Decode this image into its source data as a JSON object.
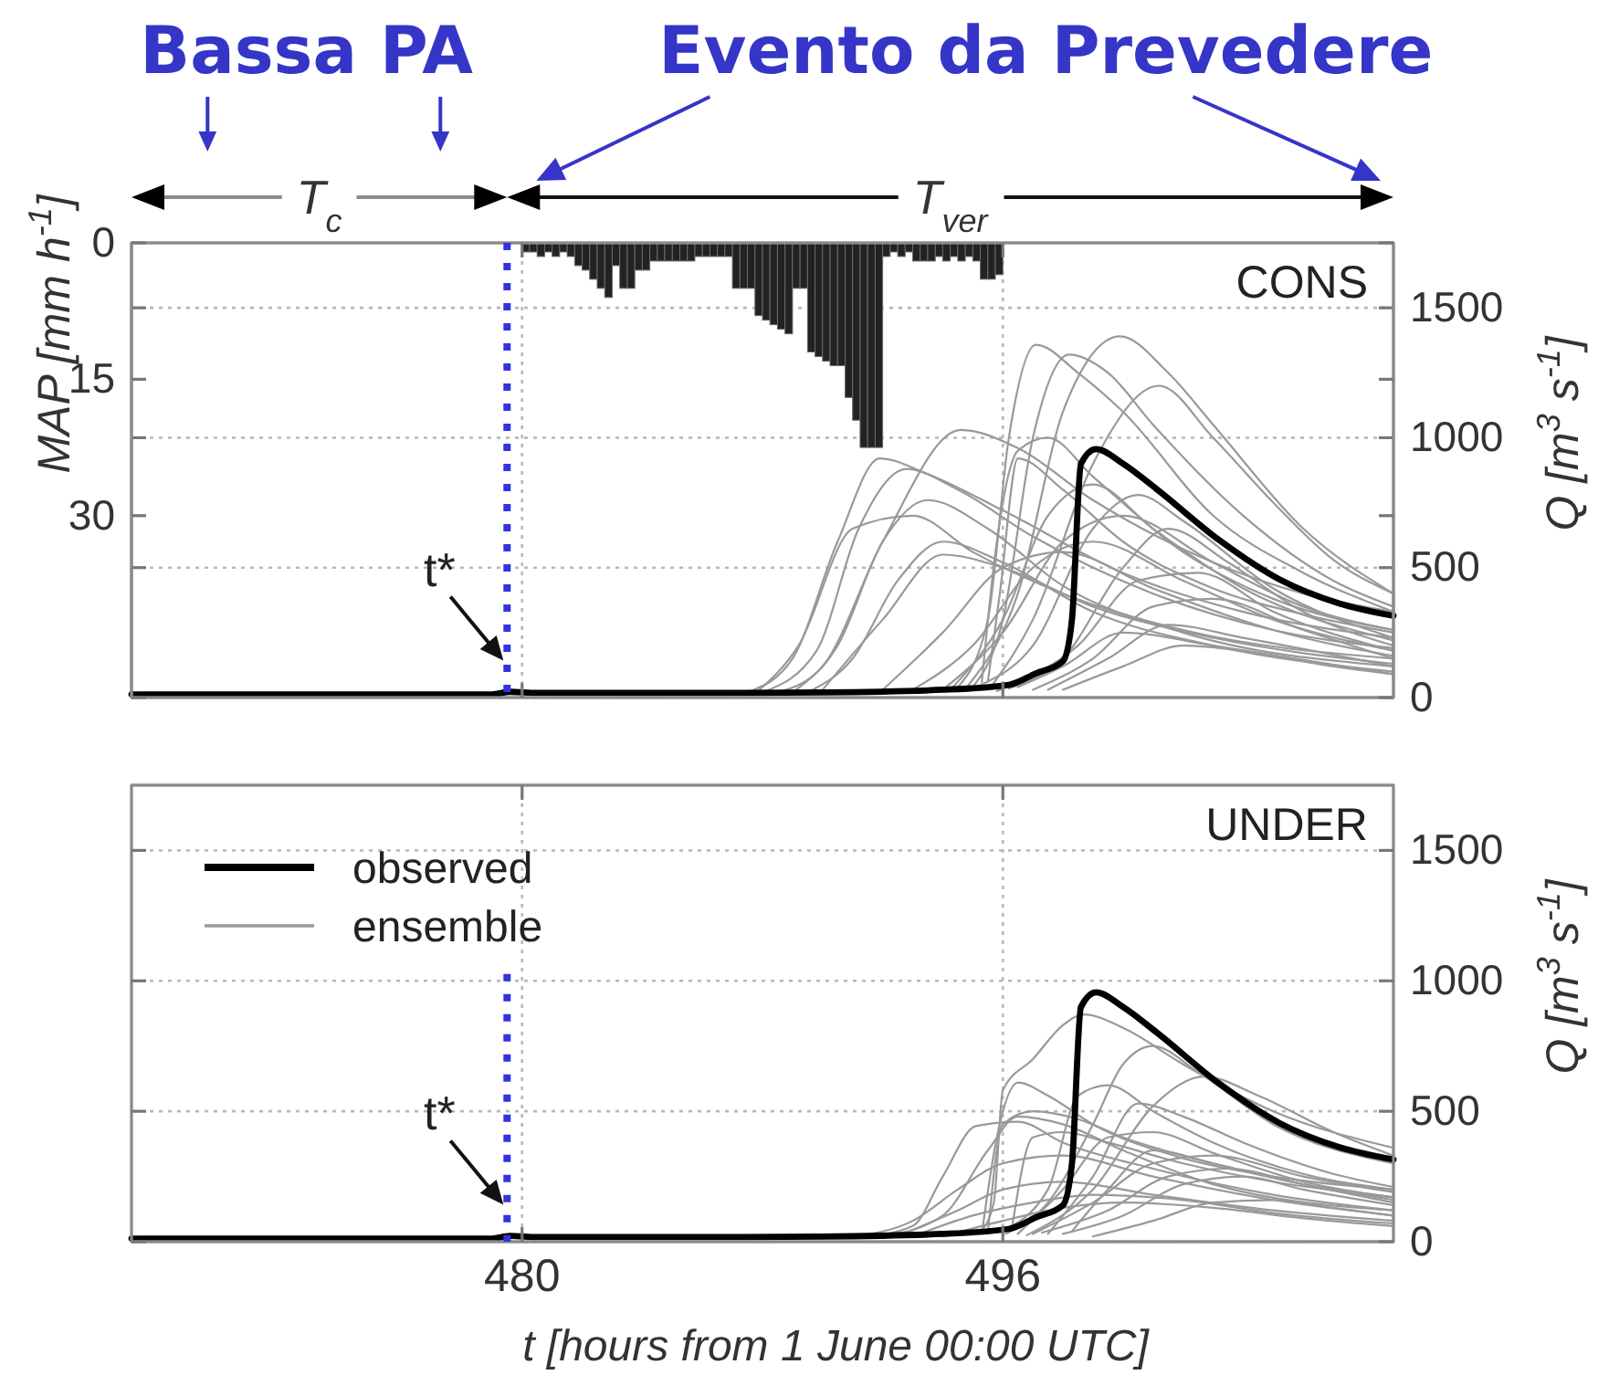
{
  "chart_data": [
    {
      "type": "line",
      "title": "CONS",
      "ylabel": "Q [m$^{3}$ s$^{-1}$]",
      "y2label": "MAP [mm h$^{-1}$]",
      "xlim": [
        467,
        509
      ],
      "ylim": [
        0,
        1750
      ],
      "yticks": [
        0,
        500,
        1000,
        1500
      ],
      "y2lim": [
        50,
        0
      ],
      "y2ticks": [
        0,
        15,
        30
      ],
      "grid": true,
      "tick_labels": "y",
      "ref_lines": [
        {
          "axis": "x",
          "value": 479.5,
          "color": "#3333dd",
          "line_style": "dotted"
        }
      ],
      "annotations": [
        "Bassa PA",
        "Evento da Prevedere",
        "T$_{c}$",
        "T$_{ver}$",
        {
          "text": "t*",
          "x": 479.5,
          "y": 100
        }
      ],
      "series": [
        {
          "type": "bar",
          "axis": "y2",
          "color": "#222222",
          "x": [
            480.125,
            480.375,
            480.625,
            480.875,
            481.125,
            481.375,
            481.625,
            481.875,
            482.125,
            482.375,
            482.625,
            482.875,
            483.125,
            483.375,
            483.625,
            483.875,
            484.125,
            484.375,
            484.625,
            484.875,
            485.125,
            485.375,
            485.625,
            485.875,
            486.125,
            486.375,
            486.625,
            486.875,
            487.125,
            487.375,
            487.625,
            487.875,
            488.125,
            488.375,
            488.625,
            488.875,
            489.125,
            489.375,
            489.625,
            489.875,
            490.125,
            490.375,
            490.625,
            490.875,
            491.125,
            491.375,
            491.625,
            491.875,
            492.125,
            492.375,
            492.625,
            492.875,
            493.125,
            493.375,
            493.625,
            493.875,
            494.125,
            494.375,
            494.625,
            494.875,
            495.125,
            495.375,
            495.625,
            495.875
          ],
          "values": [
            1.0,
            1.0,
            1.5,
            1.0,
            1.5,
            1.0,
            1.5,
            2.5,
            3.0,
            4.0,
            5.0,
            6.0,
            2.5,
            5.0,
            5.0,
            3.0,
            3.0,
            2.0,
            2.0,
            2.0,
            2.0,
            2.0,
            2.0,
            1.5,
            1.5,
            1.5,
            1.5,
            1.5,
            5.0,
            5.0,
            5.0,
            8.0,
            8.5,
            9.0,
            9.5,
            10.0,
            5.0,
            5.0,
            12.0,
            12.5,
            13.0,
            13.5,
            13.5,
            17.0,
            19.5,
            22.5,
            22.5,
            22.5,
            1.5,
            1.0,
            1.5,
            1.0,
            2.0,
            2.0,
            2.0,
            1.5,
            2.0,
            1.5,
            2.0,
            1.5,
            2.0,
            4.0,
            4.0,
            3.5
          ]
        },
        {
          "color": "#999999",
          "x": [
            487.5,
            489,
            490.5,
            491.9,
            493.5,
            496,
            500,
            504,
            509
          ],
          "values": [
            20,
            150,
            600,
            920,
            860,
            720,
            480,
            330,
            230
          ]
        },
        {
          "color": "#999999",
          "x": [
            488,
            489.8,
            491.2,
            492.8,
            494.5,
            497,
            501,
            505,
            509
          ],
          "values": [
            20,
            180,
            650,
            880,
            800,
            620,
            400,
            260,
            190
          ]
        },
        {
          "color": "#999999",
          "x": [
            488.5,
            490,
            492,
            494.6,
            496.5,
            499,
            503,
            506,
            509
          ],
          "values": [
            20,
            120,
            600,
            1030,
            960,
            760,
            520,
            400,
            330
          ]
        },
        {
          "color": "#999999",
          "x": [
            487.8,
            489.2,
            491,
            493,
            495,
            498,
            502,
            509
          ],
          "values": [
            20,
            200,
            650,
            700,
            560,
            400,
            260,
            150
          ]
        },
        {
          "color": "#999999",
          "x": [
            489,
            490.5,
            492,
            493.5,
            495.5,
            498,
            502,
            509
          ],
          "values": [
            20,
            200,
            600,
            760,
            650,
            430,
            250,
            120
          ]
        },
        {
          "color": "#999999",
          "x": [
            489.5,
            491,
            492.5,
            494,
            496,
            499,
            503,
            509
          ],
          "values": [
            20,
            150,
            450,
            600,
            520,
            330,
            200,
            100
          ]
        },
        {
          "color": "#999999",
          "x": [
            494.5,
            495.5,
            496.2,
            497.1,
            498.5,
            500,
            503,
            506,
            509
          ],
          "values": [
            40,
            300,
            1000,
            1358,
            1250,
            1100,
            700,
            480,
            330
          ]
        },
        {
          "color": "#999999",
          "x": [
            494.8,
            496.5,
            498,
            499.9,
            501.5,
            503,
            506,
            509
          ],
          "values": [
            40,
            400,
            1100,
            1390,
            1250,
            1050,
            650,
            400
          ]
        },
        {
          "color": "#999999",
          "x": [
            495,
            496,
            497,
            498.2,
            499.5,
            501,
            504,
            507,
            509
          ],
          "values": [
            40,
            300,
            1000,
            1320,
            1250,
            1050,
            700,
            450,
            350
          ]
        },
        {
          "color": "#999999",
          "x": [
            495.6,
            497,
            499,
            501.2,
            503,
            505,
            507,
            509
          ],
          "values": [
            40,
            300,
            900,
            1200,
            1000,
            750,
            530,
            400
          ]
        },
        {
          "color": "#999999",
          "x": [
            495.5,
            495.9,
            496.5,
            498,
            500,
            503,
            506,
            509
          ],
          "values": [
            60,
            400,
            920,
            800,
            600,
            420,
            320,
            250
          ]
        },
        {
          "color": "#999999",
          "x": [
            495.3,
            495.8,
            496.5,
            497.5,
            499,
            502,
            505,
            509
          ],
          "values": [
            60,
            600,
            950,
            1000,
            850,
            560,
            380,
            260
          ]
        },
        {
          "color": "#999999",
          "x": [
            494.3,
            496,
            497.5,
            499,
            501,
            504,
            509
          ],
          "values": [
            35,
            300,
            700,
            820,
            650,
            420,
            220
          ]
        },
        {
          "color": "#999999",
          "x": [
            495.2,
            497,
            499,
            500.5,
            502,
            505,
            509
          ],
          "values": [
            45,
            200,
            650,
            780,
            680,
            420,
            230
          ]
        },
        {
          "color": "#999999",
          "x": [
            496.2,
            498,
            500,
            501.5,
            503.5,
            506,
            509
          ],
          "values": [
            35,
            150,
            500,
            650,
            520,
            330,
            200
          ]
        },
        {
          "color": "#999999",
          "x": [
            493,
            495,
            497,
            499,
            502,
            505,
            509
          ],
          "values": [
            30,
            200,
            500,
            600,
            450,
            300,
            180
          ]
        },
        {
          "color": "#999999",
          "x": [
            495.8,
            498.5,
            500.5,
            502.5,
            505,
            509
          ],
          "values": [
            25,
            200,
            450,
            480,
            330,
            180
          ]
        },
        {
          "color": "#999999",
          "x": [
            497,
            499,
            501,
            503,
            506,
            509
          ],
          "values": [
            30,
            150,
            350,
            380,
            260,
            150
          ]
        },
        {
          "color": "#999999",
          "x": [
            497.5,
            499.5,
            501.5,
            504,
            509
          ],
          "values": [
            30,
            150,
            280,
            230,
            120
          ]
        },
        {
          "color": "#999999",
          "x": [
            496.5,
            498,
            500,
            503,
            509
          ],
          "values": [
            40,
            120,
            250,
            200,
            90
          ]
        },
        {
          "color": "#999999",
          "x": [
            492,
            494,
            496,
            498,
            501,
            505,
            509
          ],
          "values": [
            30,
            250,
            500,
            560,
            420,
            260,
            160
          ]
        },
        {
          "color": "#999999",
          "x": [
            490,
            492,
            494,
            496,
            499,
            503,
            509
          ],
          "values": [
            30,
            300,
            550,
            500,
            350,
            230,
            130
          ]
        },
        {
          "color": "#999999",
          "x": [
            498,
            500,
            502,
            504,
            507,
            509
          ],
          "values": [
            30,
            120,
            200,
            180,
            120,
            90
          ]
        },
        {
          "color": "#999999",
          "x": [
            494,
            496,
            498,
            500,
            503,
            506,
            509
          ],
          "values": [
            30,
            250,
            600,
            700,
            520,
            350,
            260
          ]
        },
        {
          "color": "#000000",
          "x": [
            467,
            479,
            479.6,
            480.5,
            486,
            490,
            494,
            496.2,
            497.1,
            498,
            498.3,
            498.6,
            499.1,
            500,
            501.1,
            503.2,
            505.2,
            507.2,
            509
          ],
          "values": [
            12,
            12,
            22,
            18,
            18,
            20,
            30,
            49,
            93,
            140,
            300,
            900,
            956,
            900,
            804,
            606,
            455,
            362,
            315
          ]
        }
      ]
    },
    {
      "type": "line",
      "title": "UNDER",
      "ylabel": "Q [m$^{3}$ s$^{-1}$]",
      "xlabel": "t [hours from 1 June 00:00 UTC]",
      "xlim": [
        467,
        509
      ],
      "xticks": [
        480,
        496
      ],
      "ylim": [
        0,
        1750
      ],
      "yticks": [
        0,
        500,
        1000,
        1500
      ],
      "grid": true,
      "legend": "top left",
      "ref_lines": [
        {
          "axis": "x",
          "value": 479.5,
          "color": "#3333dd",
          "line_style": "dotted"
        }
      ],
      "annotations": [
        {
          "text": "t*",
          "x": 479.5,
          "y": 100
        }
      ],
      "series": [
        {
          "name": "ensemble",
          "color": "#999999",
          "x": [
            495.2,
            495.7,
            496,
            497,
            498,
            498.7,
            500,
            502,
            505,
            509
          ],
          "values": [
            30,
            150,
            580,
            700,
            830,
            871,
            820,
            680,
            500,
            360
          ]
        },
        {
          "color": "#999999",
          "x": [
            495.3,
            495.8,
            496.5,
            497.5,
            499,
            502,
            505,
            509
          ],
          "values": [
            30,
            400,
            610,
            560,
            450,
            320,
            250,
            200
          ]
        },
        {
          "color": "#999999",
          "x": [
            496.1,
            497.5,
            499,
            500,
            501,
            502.5,
            505,
            509
          ],
          "values": [
            30,
            150,
            450,
            680,
            750,
            650,
            450,
            300
          ]
        },
        {
          "color": "#999999",
          "x": [
            496.8,
            499,
            501,
            502.7,
            504.5,
            507,
            509
          ],
          "values": [
            25,
            200,
            520,
            633,
            560,
            420,
            330
          ]
        },
        {
          "color": "#999999",
          "x": [
            491.5,
            493,
            494,
            495.1,
            496.5,
            498,
            501,
            505,
            509
          ],
          "values": [
            20,
            60,
            250,
            443,
            460,
            380,
            280,
            180,
            120
          ]
        },
        {
          "color": "#999999",
          "x": [
            492,
            494,
            495.5,
            496.5,
            498,
            500,
            503,
            509
          ],
          "values": [
            20,
            100,
            350,
            480,
            450,
            350,
            220,
            120
          ]
        },
        {
          "color": "#999999",
          "x": [
            491,
            493,
            494.5,
            496,
            498,
            501,
            505,
            509
          ],
          "values": [
            20,
            80,
            200,
            300,
            330,
            250,
            160,
            100
          ]
        },
        {
          "color": "#999999",
          "x": [
            495.9,
            497.5,
            498.5,
            499.5,
            501,
            503,
            506,
            509
          ],
          "values": [
            40,
            200,
            560,
            600,
            500,
            380,
            260,
            200
          ]
        },
        {
          "color": "#999999",
          "x": [
            495.5,
            496,
            497,
            498.5,
            500,
            503,
            506,
            509
          ],
          "values": [
            30,
            450,
            500,
            470,
            400,
            300,
            220,
            170
          ]
        },
        {
          "color": "#999999",
          "x": [
            496.5,
            498,
            499.5,
            501,
            503,
            506,
            509
          ],
          "values": [
            30,
            200,
            400,
            420,
            340,
            230,
            170
          ]
        },
        {
          "color": "#999999",
          "x": [
            497,
            499,
            501,
            503,
            506,
            509
          ],
          "values": [
            30,
            150,
            300,
            330,
            250,
            190
          ]
        },
        {
          "color": "#999999",
          "x": [
            497.3,
            499.5,
            501.5,
            503.5,
            506,
            509
          ],
          "values": [
            35,
            120,
            250,
            280,
            220,
            160
          ]
        },
        {
          "color": "#999999",
          "x": [
            498,
            500,
            502,
            504,
            506,
            509
          ],
          "values": [
            30,
            100,
            220,
            250,
            200,
            140
          ]
        },
        {
          "color": "#999999",
          "x": [
            492.5,
            494.5,
            496,
            498,
            501,
            505,
            509
          ],
          "values": [
            20,
            120,
            200,
            230,
            180,
            120,
            80
          ]
        },
        {
          "color": "#999999",
          "x": [
            493,
            495,
            497,
            499,
            502,
            505,
            509
          ],
          "values": [
            20,
            100,
            150,
            180,
            160,
            110,
            70
          ]
        },
        {
          "color": "#999999",
          "x": [
            496.3,
            497,
            498,
            499.5,
            502,
            505,
            509
          ],
          "values": [
            50,
            400,
            420,
            380,
            300,
            230,
            170
          ]
        },
        {
          "color": "#999999",
          "x": [
            498.3,
            499.5,
            501,
            503,
            506,
            509
          ],
          "values": [
            40,
            200,
            350,
            300,
            220,
            150
          ]
        },
        {
          "color": "#999999",
          "x": [
            499,
            501,
            503,
            505,
            507,
            509
          ],
          "values": [
            20,
            80,
            150,
            160,
            130,
            100
          ]
        },
        {
          "color": "#999999",
          "x": [
            497.5,
            499,
            500.5,
            502,
            504,
            507,
            509
          ],
          "values": [
            30,
            250,
            530,
            480,
            380,
            260,
            210
          ]
        },
        {
          "color": "#999999",
          "x": [
            494,
            496,
            498,
            500,
            503,
            506,
            509
          ],
          "values": [
            20,
            80,
            130,
            150,
            130,
            90,
            60
          ]
        },
        {
          "name": "observed",
          "color": "#000000",
          "x": [
            467,
            479,
            479.6,
            480.5,
            486,
            490,
            494,
            496.2,
            497.1,
            498,
            498.3,
            498.6,
            499.1,
            500,
            501.1,
            503.2,
            505.2,
            507.2,
            509
          ],
          "values": [
            12,
            12,
            22,
            18,
            18,
            20,
            30,
            49,
            93,
            140,
            300,
            900,
            956,
            900,
            804,
            606,
            455,
            362,
            315
          ]
        }
      ]
    }
  ]
}
